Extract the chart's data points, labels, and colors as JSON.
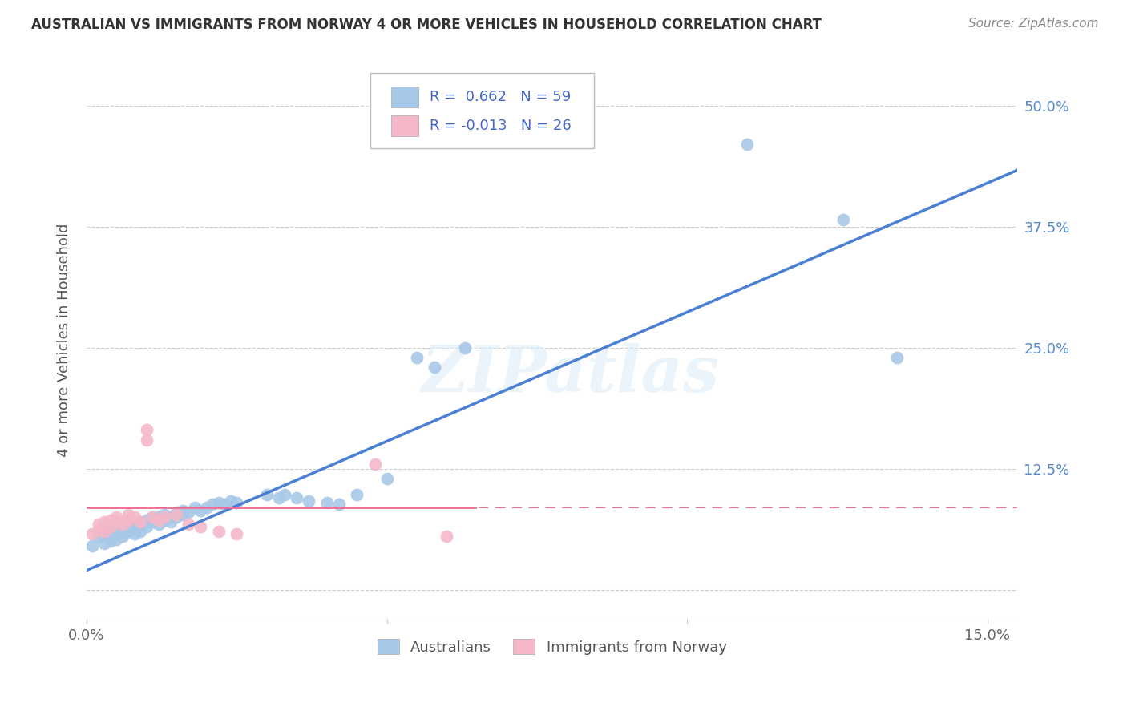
{
  "title": "AUSTRALIAN VS IMMIGRANTS FROM NORWAY 4 OR MORE VEHICLES IN HOUSEHOLD CORRELATION CHART",
  "source": "Source: ZipAtlas.com",
  "ylabel": "4 or more Vehicles in Household",
  "xlim": [
    0.0,
    0.155
  ],
  "ylim": [
    -0.03,
    0.545
  ],
  "R_aus": 0.662,
  "N_aus": 59,
  "R_nor": -0.013,
  "N_nor": 26,
  "blue_color": "#a8c8e8",
  "pink_color": "#f4b8c8",
  "line_blue": "#4a7fd4",
  "line_pink": "#e87090",
  "watermark": "ZIPatlas",
  "legend_label_aus": "Australians",
  "legend_label_nor": "Immigrants from Norway",
  "aus_x": [
    0.001,
    0.002,
    0.002,
    0.003,
    0.003,
    0.003,
    0.004,
    0.004,
    0.004,
    0.005,
    0.005,
    0.005,
    0.006,
    0.006,
    0.007,
    0.007,
    0.007,
    0.008,
    0.008,
    0.009,
    0.009,
    0.01,
    0.01,
    0.011,
    0.011,
    0.012,
    0.012,
    0.013,
    0.013,
    0.014,
    0.014,
    0.015,
    0.015,
    0.016,
    0.016,
    0.017,
    0.018,
    0.019,
    0.02,
    0.021,
    0.022,
    0.023,
    0.024,
    0.025,
    0.03,
    0.032,
    0.033,
    0.035,
    0.037,
    0.04,
    0.042,
    0.045,
    0.05,
    0.055,
    0.058,
    0.063,
    0.11,
    0.126,
    0.135
  ],
  "aus_y": [
    0.045,
    0.055,
    0.06,
    0.048,
    0.058,
    0.062,
    0.05,
    0.055,
    0.06,
    0.052,
    0.058,
    0.065,
    0.055,
    0.06,
    0.06,
    0.065,
    0.07,
    0.058,
    0.065,
    0.06,
    0.068,
    0.065,
    0.072,
    0.07,
    0.075,
    0.068,
    0.075,
    0.072,
    0.078,
    0.07,
    0.075,
    0.075,
    0.08,
    0.078,
    0.082,
    0.08,
    0.085,
    0.082,
    0.085,
    0.088,
    0.09,
    0.088,
    0.092,
    0.09,
    0.098,
    0.095,
    0.098,
    0.095,
    0.092,
    0.09,
    0.088,
    0.098,
    0.115,
    0.24,
    0.23,
    0.25,
    0.46,
    0.382,
    0.24
  ],
  "nor_x": [
    0.001,
    0.002,
    0.002,
    0.003,
    0.003,
    0.004,
    0.004,
    0.005,
    0.005,
    0.006,
    0.007,
    0.007,
    0.008,
    0.009,
    0.01,
    0.01,
    0.011,
    0.012,
    0.013,
    0.015,
    0.017,
    0.019,
    0.022,
    0.025,
    0.048,
    0.06
  ],
  "nor_y": [
    0.058,
    0.062,
    0.068,
    0.06,
    0.07,
    0.065,
    0.072,
    0.07,
    0.075,
    0.068,
    0.072,
    0.078,
    0.075,
    0.07,
    0.165,
    0.155,
    0.075,
    0.072,
    0.075,
    0.078,
    0.068,
    0.065,
    0.06,
    0.058,
    0.13,
    0.055
  ]
}
